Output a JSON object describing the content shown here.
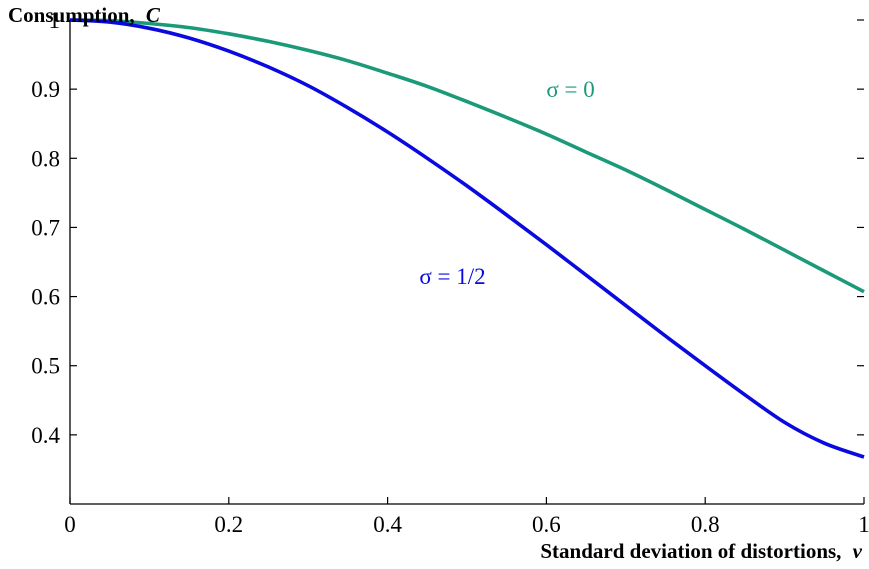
{
  "chart_data": {
    "type": "line",
    "ylabel": "Consumption,",
    "ylabel_symbol": "C",
    "xlabel": "Standard deviation of distortions,",
    "xlabel_symbol": "v",
    "xlim": [
      0,
      1
    ],
    "ylim": [
      0.3,
      1
    ],
    "grid": false,
    "x_ticks": [
      {
        "value": 0,
        "label": "0"
      },
      {
        "value": 0.2,
        "label": "0.2"
      },
      {
        "value": 0.4,
        "label": "0.4"
      },
      {
        "value": 0.6,
        "label": "0.6"
      },
      {
        "value": 0.8,
        "label": "0.8"
      },
      {
        "value": 1,
        "label": "1"
      }
    ],
    "y_ticks": [
      {
        "value": 0.4,
        "label": "0.4"
      },
      {
        "value": 0.5,
        "label": "0.5"
      },
      {
        "value": 0.6,
        "label": "0.6"
      },
      {
        "value": 0.7,
        "label": "0.7"
      },
      {
        "value": 0.8,
        "label": "0.8"
      },
      {
        "value": 0.9,
        "label": "0.9"
      },
      {
        "value": 1,
        "label": "1"
      }
    ],
    "series": [
      {
        "name": "σ = 0",
        "color": "#1a9a78",
        "label_at": [
          0.6,
          0.9
        ],
        "x": [
          0,
          0.05,
          0.1,
          0.15,
          0.2,
          0.25,
          0.3,
          0.35,
          0.4,
          0.45,
          0.5,
          0.55,
          0.6,
          0.65,
          0.7,
          0.75,
          0.8,
          0.85,
          0.9,
          0.95,
          1
        ],
        "y": [
          1.0,
          0.999,
          0.995,
          0.989,
          0.98,
          0.969,
          0.956,
          0.941,
          0.923,
          0.904,
          0.882,
          0.859,
          0.835,
          0.809,
          0.783,
          0.755,
          0.726,
          0.697,
          0.667,
          0.637,
          0.607
        ]
      },
      {
        "name": "σ = 1/2",
        "color": "#0a0ae0",
        "label_at": [
          0.44,
          0.63
        ],
        "x": [
          0,
          0.05,
          0.1,
          0.15,
          0.2,
          0.25,
          0.3,
          0.35,
          0.4,
          0.45,
          0.5,
          0.55,
          0.6,
          0.65,
          0.7,
          0.75,
          0.8,
          0.85,
          0.9,
          0.95,
          1
        ],
        "y": [
          1.0,
          0.997,
          0.988,
          0.974,
          0.955,
          0.932,
          0.905,
          0.873,
          0.838,
          0.8,
          0.76,
          0.718,
          0.675,
          0.631,
          0.587,
          0.543,
          0.5,
          0.458,
          0.418,
          0.388,
          0.368
        ]
      }
    ]
  }
}
